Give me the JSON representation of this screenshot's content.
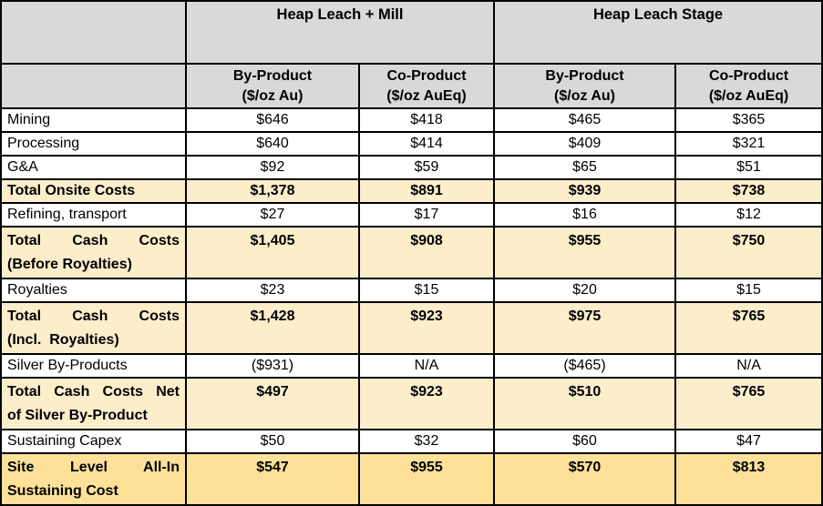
{
  "colors": {
    "header_bg": "#D9D9D9",
    "total_row_bg": "#FCEECB",
    "grand_row_bg": "#FDE199",
    "border": "#000000",
    "row_bg": "#FFFFFF"
  },
  "table": {
    "header": {
      "corner": "",
      "groups": [
        "Heap Leach + Mill",
        "Heap Leach Stage"
      ],
      "sub_columns": [
        {
          "lines": [
            "By-Product",
            "($/oz Au)"
          ]
        },
        {
          "lines": [
            "Co-Product",
            "($/oz AuEq)"
          ]
        },
        {
          "lines": [
            "By-Product",
            "($/oz Au)"
          ]
        },
        {
          "lines": [
            "Co-Product",
            "($/oz AuEq)"
          ]
        }
      ]
    },
    "rows": [
      {
        "emphasis": "normal",
        "label_lines": [
          "Mining"
        ],
        "values": [
          "$646",
          "$418",
          "$465",
          "$365"
        ]
      },
      {
        "emphasis": "normal",
        "label_lines": [
          "Processing"
        ],
        "values": [
          "$640",
          "$414",
          "$409",
          "$321"
        ]
      },
      {
        "emphasis": "normal",
        "label_lines": [
          "G&A"
        ],
        "values": [
          "$92",
          "$59",
          "$65",
          "$51"
        ]
      },
      {
        "emphasis": "total",
        "label_lines": [
          "Total Onsite Costs"
        ],
        "values": [
          "$1,378",
          "$891",
          "$939",
          "$738"
        ]
      },
      {
        "emphasis": "normal",
        "label_lines": [
          "Refining, transport"
        ],
        "values": [
          "$27",
          "$17",
          "$16",
          "$12"
        ]
      },
      {
        "emphasis": "total",
        "label_lines": [
          "Total Cash Costs",
          "(Before Royalties)"
        ],
        "values": [
          "$1,405",
          "$908",
          "$955",
          "$750"
        ]
      },
      {
        "emphasis": "normal",
        "label_lines": [
          "Royalties"
        ],
        "values": [
          "$23",
          "$15",
          "$20",
          "$15"
        ]
      },
      {
        "emphasis": "total",
        "label_lines": [
          "Total Cash Costs",
          "(Incl.  Royalties)"
        ],
        "values": [
          "$1,428",
          "$923",
          "$975",
          "$765"
        ]
      },
      {
        "emphasis": "normal",
        "label_lines": [
          "Silver By-Products"
        ],
        "values": [
          "($931)",
          "N/A",
          "($465)",
          "N/A"
        ]
      },
      {
        "emphasis": "total",
        "label_lines": [
          "Total Cash Costs Net",
          "of Silver By-Product"
        ],
        "values": [
          "$497",
          "$923",
          "$510",
          "$765"
        ]
      },
      {
        "emphasis": "normal",
        "label_lines": [
          "Sustaining Capex"
        ],
        "values": [
          "$50",
          "$32",
          "$60",
          "$47"
        ]
      },
      {
        "emphasis": "grand",
        "label_lines": [
          "Site Level All-In",
          "Sustaining Cost"
        ],
        "values": [
          "$547",
          "$955",
          "$570",
          "$813"
        ]
      }
    ]
  }
}
